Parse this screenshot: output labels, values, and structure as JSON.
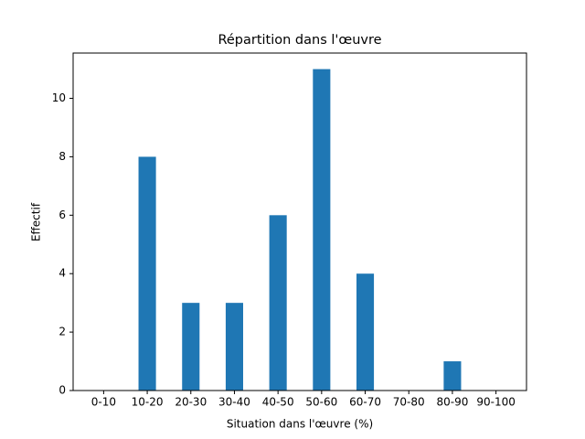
{
  "chart_data": {
    "type": "bar",
    "title": "Répartition dans l'œuvre",
    "x_label": "Situation dans l'œuvre (%)",
    "y_label": "Effectif",
    "categories": [
      "0-10",
      "10-20",
      "20-30",
      "30-40",
      "40-50",
      "50-60",
      "60-70",
      "70-80",
      "80-90",
      "90-100"
    ],
    "values": [
      0,
      8,
      3,
      3,
      6,
      11,
      4,
      0,
      1,
      0
    ],
    "color": "#1f77b4",
    "ylim": [
      0,
      11.55
    ],
    "yticks": [
      0,
      2,
      4,
      6,
      8,
      10
    ],
    "grid": false
  }
}
